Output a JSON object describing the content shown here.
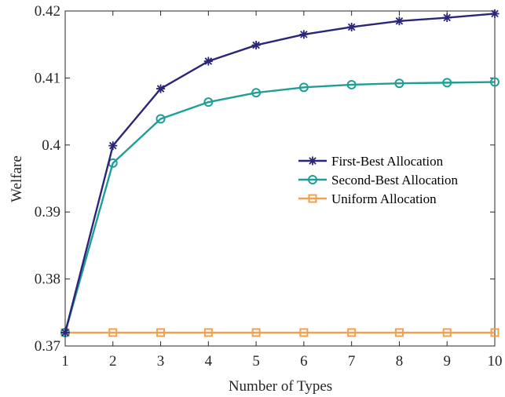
{
  "chart_data": {
    "type": "line",
    "xlabel": "Number of Types",
    "ylabel": "Welfare",
    "xlim": [
      1,
      10
    ],
    "ylim": [
      0.37,
      0.42
    ],
    "x": [
      1,
      2,
      3,
      4,
      5,
      6,
      7,
      8,
      9,
      10
    ],
    "xticks": [
      "1",
      "2",
      "3",
      "4",
      "5",
      "6",
      "7",
      "8",
      "9",
      "10"
    ],
    "yticks": [
      0.37,
      0.38,
      0.39,
      0.4,
      0.41,
      0.42
    ],
    "ytick_labels": [
      "0.37",
      "0.38",
      "0.39",
      "0.4",
      "0.41",
      "0.42"
    ],
    "grid": false,
    "legend_position": "right-center",
    "series": [
      {
        "name": "First-Best Allocation",
        "color": "#2a2678",
        "marker": "asterisk",
        "values": [
          0.372,
          0.3999,
          0.4084,
          0.4125,
          0.4149,
          0.4165,
          0.4176,
          0.4185,
          0.419,
          0.4196
        ]
      },
      {
        "name": "Second-Best Allocation",
        "color": "#1f9e96",
        "marker": "circle",
        "values": [
          0.372,
          0.3973,
          0.4039,
          0.4064,
          0.4078,
          0.4086,
          0.409,
          0.4092,
          0.4093,
          0.4094
        ]
      },
      {
        "name": "Uniform Allocation",
        "color": "#f0a050",
        "marker": "square",
        "values": [
          0.372,
          0.372,
          0.372,
          0.372,
          0.372,
          0.372,
          0.372,
          0.372,
          0.372,
          0.372
        ]
      }
    ]
  }
}
